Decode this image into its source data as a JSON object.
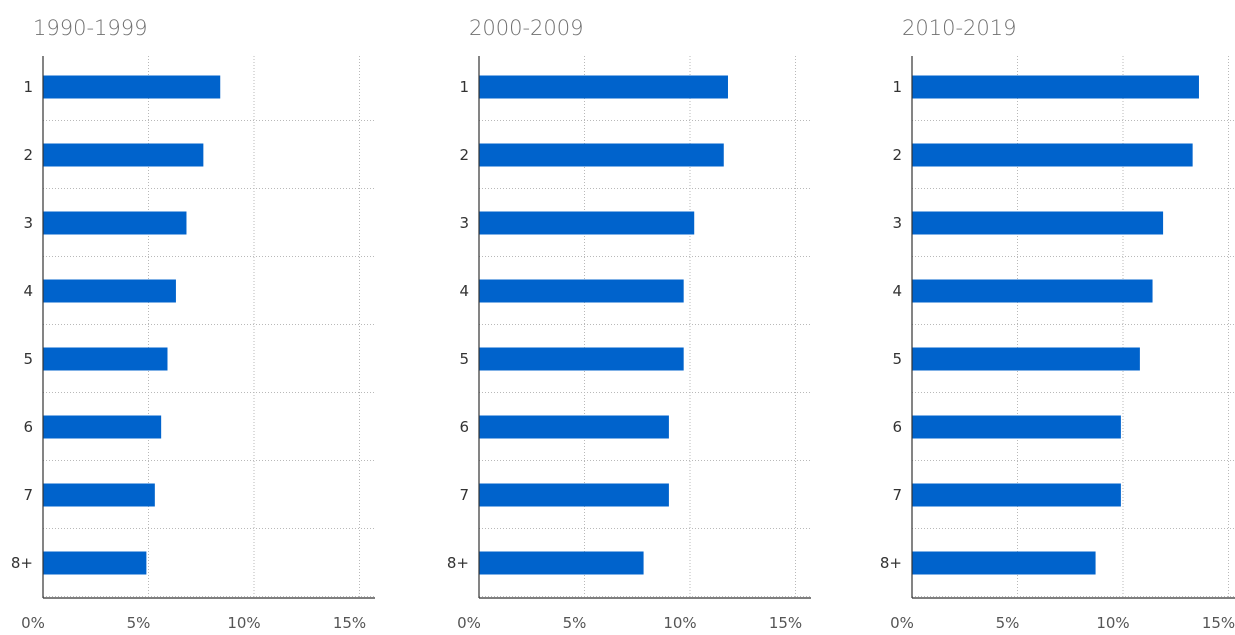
{
  "chart_data": [
    {
      "type": "bar",
      "orientation": "horizontal",
      "title": "1990-1999",
      "categories": [
        "1",
        "2",
        "3",
        "4",
        "5",
        "6",
        "7",
        "8+"
      ],
      "values": [
        8.4,
        7.6,
        6.8,
        6.3,
        5.9,
        5.6,
        5.3,
        4.9
      ],
      "xlim": [
        0,
        15
      ],
      "xticks": [
        "0%",
        "5%",
        "10%",
        "15%"
      ],
      "grid": true,
      "bar_color": "#0063cc"
    },
    {
      "type": "bar",
      "orientation": "horizontal",
      "title": "2000-2009",
      "categories": [
        "1",
        "2",
        "3",
        "4",
        "5",
        "6",
        "7",
        "8+"
      ],
      "values": [
        11.8,
        11.6,
        10.2,
        9.7,
        9.7,
        9.0,
        9.0,
        7.8
      ],
      "xlim": [
        0,
        15
      ],
      "xticks": [
        "0%",
        "5%",
        "10%",
        "15%"
      ],
      "grid": true,
      "bar_color": "#0063cc"
    },
    {
      "type": "bar",
      "orientation": "horizontal",
      "title": "2010-2019",
      "categories": [
        "1",
        "2",
        "3",
        "4",
        "5",
        "6",
        "7",
        "8+"
      ],
      "values": [
        13.6,
        13.3,
        11.9,
        11.4,
        10.8,
        9.9,
        9.9,
        8.7
      ],
      "xlim": [
        0,
        15
      ],
      "xticks": [
        "0%",
        "5%",
        "10%",
        "15%"
      ],
      "grid": true,
      "bar_color": "#0063cc"
    }
  ]
}
